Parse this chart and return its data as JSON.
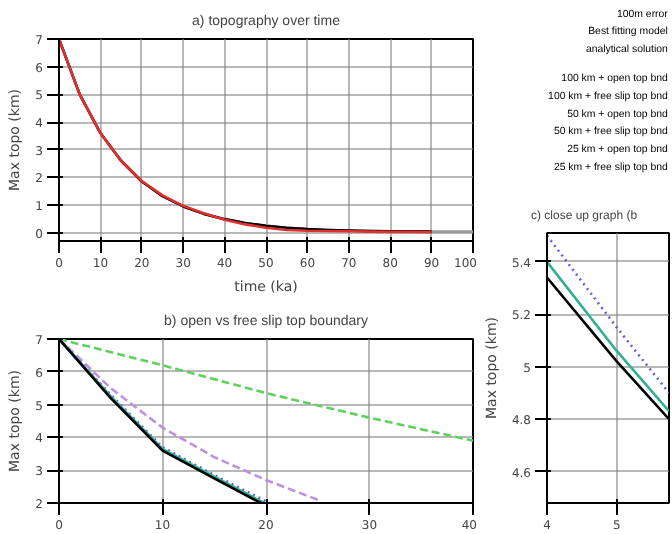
{
  "chart_data": [
    {
      "type": "line",
      "title": "a) topography over time",
      "xlabel": "time (ka)",
      "ylabel": "Max topo (km)",
      "xlim": [
        0,
        100
      ],
      "ylim": [
        -0.3,
        7
      ],
      "xticks": [
        0,
        10,
        20,
        30,
        40,
        50,
        60,
        70,
        80,
        90,
        100
      ],
      "yticks": [
        0,
        1,
        2,
        3,
        4,
        5,
        6,
        7
      ],
      "grid": true,
      "x": [
        0,
        5,
        10,
        15,
        20,
        25,
        30,
        35,
        40,
        45,
        50,
        55,
        60,
        65,
        70,
        75,
        80,
        85,
        90,
        95,
        100
      ],
      "series": [
        {
          "color": "#999999",
          "values": [
            7,
            5.0,
            3.6,
            2.6,
            1.85,
            1.32,
            0.95,
            0.68,
            0.49,
            0.35,
            0.25,
            0.18,
            0.13,
            0.1,
            0.08,
            0.06,
            0.05,
            0.05,
            0.04,
            0.04,
            0.04
          ]
        },
        {
          "color": "#000000",
          "values": [
            7,
            5.0,
            3.6,
            2.6,
            1.85,
            1.32,
            0.95,
            0.68,
            0.49,
            0.35,
            0.25,
            0.18,
            0.13,
            0.1,
            0.08,
            0.06,
            0.05,
            0.05,
            0.04,
            null,
            null
          ]
        },
        {
          "color": "#e03030",
          "values": [
            7,
            5.0,
            3.6,
            2.6,
            1.87,
            1.35,
            0.97,
            0.7,
            0.47,
            0.3,
            0.18,
            0.1,
            0.07,
            0.06,
            0.05,
            0.04,
            0.03,
            0.03,
            0.02,
            null,
            null
          ]
        }
      ]
    },
    {
      "type": "other",
      "annotations": [
        "100m error",
        "Best fitting model",
        "analytical solution",
        "100 km + open top bnd",
        "100 km + free slip top bnd",
        "50 km + open top bnd",
        "50 km + free slip top bnd",
        "25 km + open top bnd",
        "25 km + free slip top bnd"
      ]
    },
    {
      "type": "line",
      "title": "b) open vs free slip top boundary",
      "ylabel": "Max topo (km)",
      "xlim": [
        0,
        40
      ],
      "ylim": [
        2,
        7
      ],
      "xticks": [
        0,
        10,
        20,
        30,
        40
      ],
      "yticks": [
        2,
        3,
        4,
        5,
        6,
        7
      ],
      "grid": true,
      "series": [
        {
          "color": "#60d060",
          "line_style": "dashed",
          "x": [
            0,
            10,
            20,
            30,
            40
          ],
          "values": [
            7,
            6.2,
            5.35,
            4.6,
            3.9
          ]
        },
        {
          "color": "#c090e0",
          "line_style": "dashed",
          "x": [
            0,
            5,
            10,
            15,
            20,
            25
          ],
          "values": [
            7,
            5.5,
            4.3,
            3.4,
            2.7,
            2.1
          ]
        },
        {
          "color": "#6060e0",
          "line_style": "dotted",
          "x": [
            0,
            5,
            10,
            15,
            20
          ],
          "values": [
            7,
            5.3,
            3.7,
            2.85,
            2.05
          ]
        },
        {
          "color": "#30b090",
          "line_style": "solid",
          "x": [
            0,
            5,
            10,
            15,
            19.8
          ],
          "values": [
            7,
            5.25,
            3.65,
            2.8,
            2.0
          ]
        },
        {
          "color": "#000000",
          "line_style": "solid",
          "x": [
            0,
            5,
            10,
            15,
            19.5
          ],
          "values": [
            7,
            5.2,
            3.6,
            2.75,
            2.0
          ]
        }
      ]
    },
    {
      "type": "line",
      "title": "c) close up graph (b",
      "ylabel": "Max topo (km)",
      "xlim": [
        4,
        5.75
      ],
      "ylim": [
        4.48,
        5.51
      ],
      "xticks": [
        4,
        5
      ],
      "yticks": [
        4.6,
        4.8,
        5,
        5.2,
        5.4
      ],
      "grid": true,
      "series": [
        {
          "color": "#6060e0",
          "line_style": "dotted",
          "x": [
            4,
            5,
            5.75
          ],
          "values": [
            5.5,
            5.15,
            4.9
          ]
        },
        {
          "color": "#30b090",
          "line_style": "solid",
          "x": [
            4,
            5,
            5.75
          ],
          "values": [
            5.4,
            5.06,
            4.83
          ]
        },
        {
          "color": "#000000",
          "line_style": "solid",
          "x": [
            4,
            5,
            5.75
          ],
          "values": [
            5.34,
            5.02,
            4.8
          ]
        }
      ]
    }
  ]
}
